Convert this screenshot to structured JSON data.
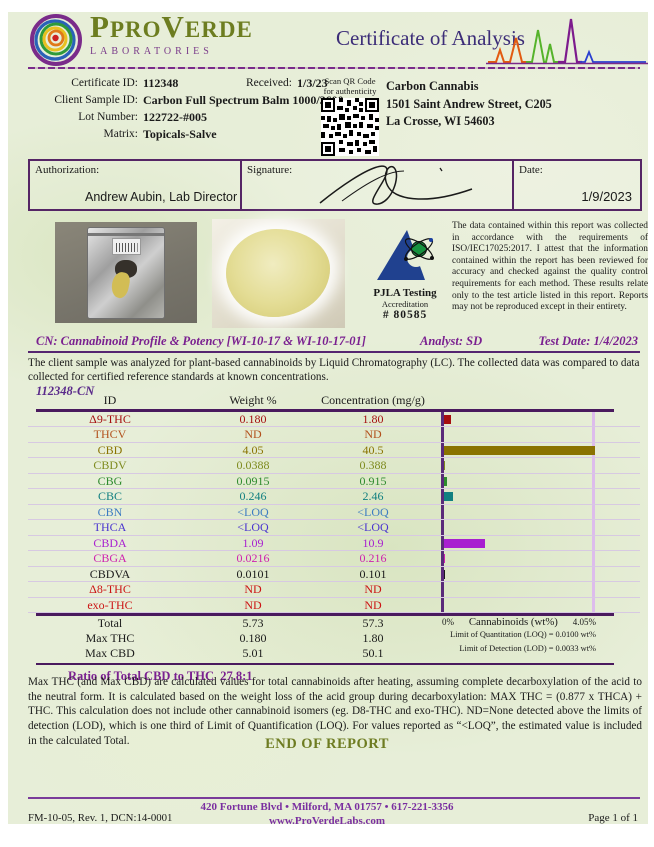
{
  "header": {
    "brand_part1": "PRO",
    "brand_part2": "V",
    "brand_part3": "ERDE",
    "brand_p": "P",
    "brand_sub": "LABORATORIES",
    "title": "Certificate of Analysis"
  },
  "info": {
    "certificate_id_label": "Certificate ID:",
    "certificate_id": "112348",
    "received_label": "Received:",
    "received": "1/3/23",
    "client_sample_id_label": "Client Sample ID:",
    "client_sample_id": "Carbon Full Spectrum Balm 1000/3600mg",
    "lot_number_label": "Lot Number:",
    "lot_number": "122722-#005",
    "matrix_label": "Matrix:",
    "matrix": "Topicals-Salve",
    "qr_caption_line1": "Scan QR Code",
    "qr_caption_line2": "for authenticity",
    "client_name": "Carbon Cannabis",
    "client_address_line1": "1501 Saint Andrew Street, C205",
    "client_address_line2": "La Crosse, WI  54603"
  },
  "authorization": {
    "label": "Authorization:",
    "name": "Andrew Aubin, Lab Director",
    "signature_label": "Signature:",
    "date_label": "Date:",
    "date": "1/9/2023"
  },
  "accreditation": {
    "line1": "PJLA Testing",
    "line2": "Accreditation",
    "line3": "# 80585"
  },
  "attestation": "The data contained within this report was collected in accordance with the requirements of ISO/IEC17025:2017.  I attest that the information contained within the report has been reviewed for accuracy and checked against the quality control requirements for each method.  These results relate only to the test article listed in this report.  Reports may not be reproduced except in their entirety.",
  "potency": {
    "section_title": "CN: Cannabinoid Profile & Potency [WI-10-17 & WI-10-17-01]",
    "analyst": "Analyst: SD",
    "test_date": "Test Date: 1/4/2023",
    "intro": "The client sample was analyzed for plant-based cannabinoids by Liquid Chromatography (LC).  The collected data was compared to data collected for certified reference standards at known concentrations.",
    "sample_code": "112348-CN",
    "columns": [
      "ID",
      "Weight %",
      "Concentration (mg/g)"
    ],
    "rows": [
      {
        "id": "Δ9-THC",
        "weight": "0.180",
        "conc": "1.80",
        "color": "#a50f0f",
        "wt": 0.18
      },
      {
        "id": "THCV",
        "weight": "ND",
        "conc": "ND",
        "color": "#b2511c",
        "wt": null
      },
      {
        "id": "CBD",
        "weight": "4.05",
        "conc": "40.5",
        "color": "#8a7300",
        "wt": 4.05
      },
      {
        "id": "CBDV",
        "weight": "0.0388",
        "conc": "0.388",
        "color": "#7d8a1d",
        "wt": 0.0388
      },
      {
        "id": "CBG",
        "weight": "0.0915",
        "conc": "0.915",
        "color": "#2e8b2e",
        "wt": 0.0915
      },
      {
        "id": "CBC",
        "weight": "0.246",
        "conc": "2.46",
        "color": "#128080",
        "wt": 0.246
      },
      {
        "id": "CBN",
        "weight": "<LOQ",
        "conc": "<LOQ",
        "color": "#3d7cc2",
        "wt": null
      },
      {
        "id": "THCA",
        "weight": "<LOQ",
        "conc": "<LOQ",
        "color": "#4934cf",
        "wt": null
      },
      {
        "id": "CBDA",
        "weight": "1.09",
        "conc": "10.9",
        "color": "#a81fd0",
        "wt": 1.09
      },
      {
        "id": "CBGA",
        "weight": "0.0216",
        "conc": "0.216",
        "color": "#cf1fae",
        "wt": 0.0216
      },
      {
        "id": "CBDVA",
        "weight": "0.0101",
        "conc": "0.101",
        "color": "#1a1a1a",
        "wt": 0.0101
      },
      {
        "id": "Δ8-THC",
        "weight": "ND",
        "conc": "ND",
        "color": "#cc1414",
        "wt": null
      },
      {
        "id": "exo-THC",
        "weight": "ND",
        "conc": "ND",
        "color": "#cc1414",
        "wt": null
      }
    ],
    "summary_rows": [
      {
        "id": "Total",
        "weight": "5.73",
        "conc": "57.3"
      },
      {
        "id": "Max THC",
        "weight": "0.180",
        "conc": "1.80"
      },
      {
        "id": "Max CBD",
        "weight": "5.01",
        "conc": "50.1"
      }
    ],
    "chart": {
      "x_min_label": "0%",
      "x_axis_label": "Cannabinoids (wt%)",
      "x_max_label": "4.05%",
      "x_max_value": 4.05,
      "loq_note": "Limit of Quantitation (LOQ) = 0.0100 wt%",
      "lod_note": "Limit of Detection (LOD) = 0.0033 wt%"
    },
    "ratio_label": "Ratio of Total CBD to THC",
    "ratio_value": "27.8:1",
    "footnote": "Max THC (and Max CBD) are calculated values for total cannabinoids after heating, assuming complete decarboxylation of the acid to the neutral form.  It is calculated based on the weight loss of the acid group during decarboxylation:  MAX THC = (0.877 x THCA) + THC.  This calculation does not include other cannabinoid isomers (eg. D8-THC and exo-THC). ND=None detected above the limits of detection (LOD), which is one third of Limit of Quantification (LOQ).  For values reported as “<LOQ”, the estimated value is included in the calculated Total."
  },
  "end_of_report": "END OF REPORT",
  "footer": {
    "doc_code": "FM-10-05, Rev. 1, DCN:14-0001",
    "address": "420 Fortune Blvd • Milford, MA 01757 • 617-221-3356",
    "website": "www.ProVerdeLabs.com",
    "page": "Page 1 of 1"
  },
  "chart_data": {
    "type": "bar",
    "orientation": "horizontal",
    "title": "Cannabinoids (wt%)",
    "categories": [
      "Δ9-THC",
      "THCV",
      "CBD",
      "CBDV",
      "CBG",
      "CBC",
      "CBN",
      "THCA",
      "CBDA",
      "CBGA",
      "CBDVA",
      "Δ8-THC",
      "exo-THC"
    ],
    "values": [
      0.18,
      null,
      4.05,
      0.0388,
      0.0915,
      0.246,
      null,
      null,
      1.09,
      0.0216,
      0.0101,
      null,
      null
    ],
    "xlabel": "Cannabinoids (wt%)",
    "xlim": [
      0,
      4.05
    ],
    "grid": true,
    "notes": [
      "Limit of Quantitation (LOQ) = 0.0100 wt%",
      "Limit of Detection (LOD) = 0.0033 wt%"
    ]
  }
}
